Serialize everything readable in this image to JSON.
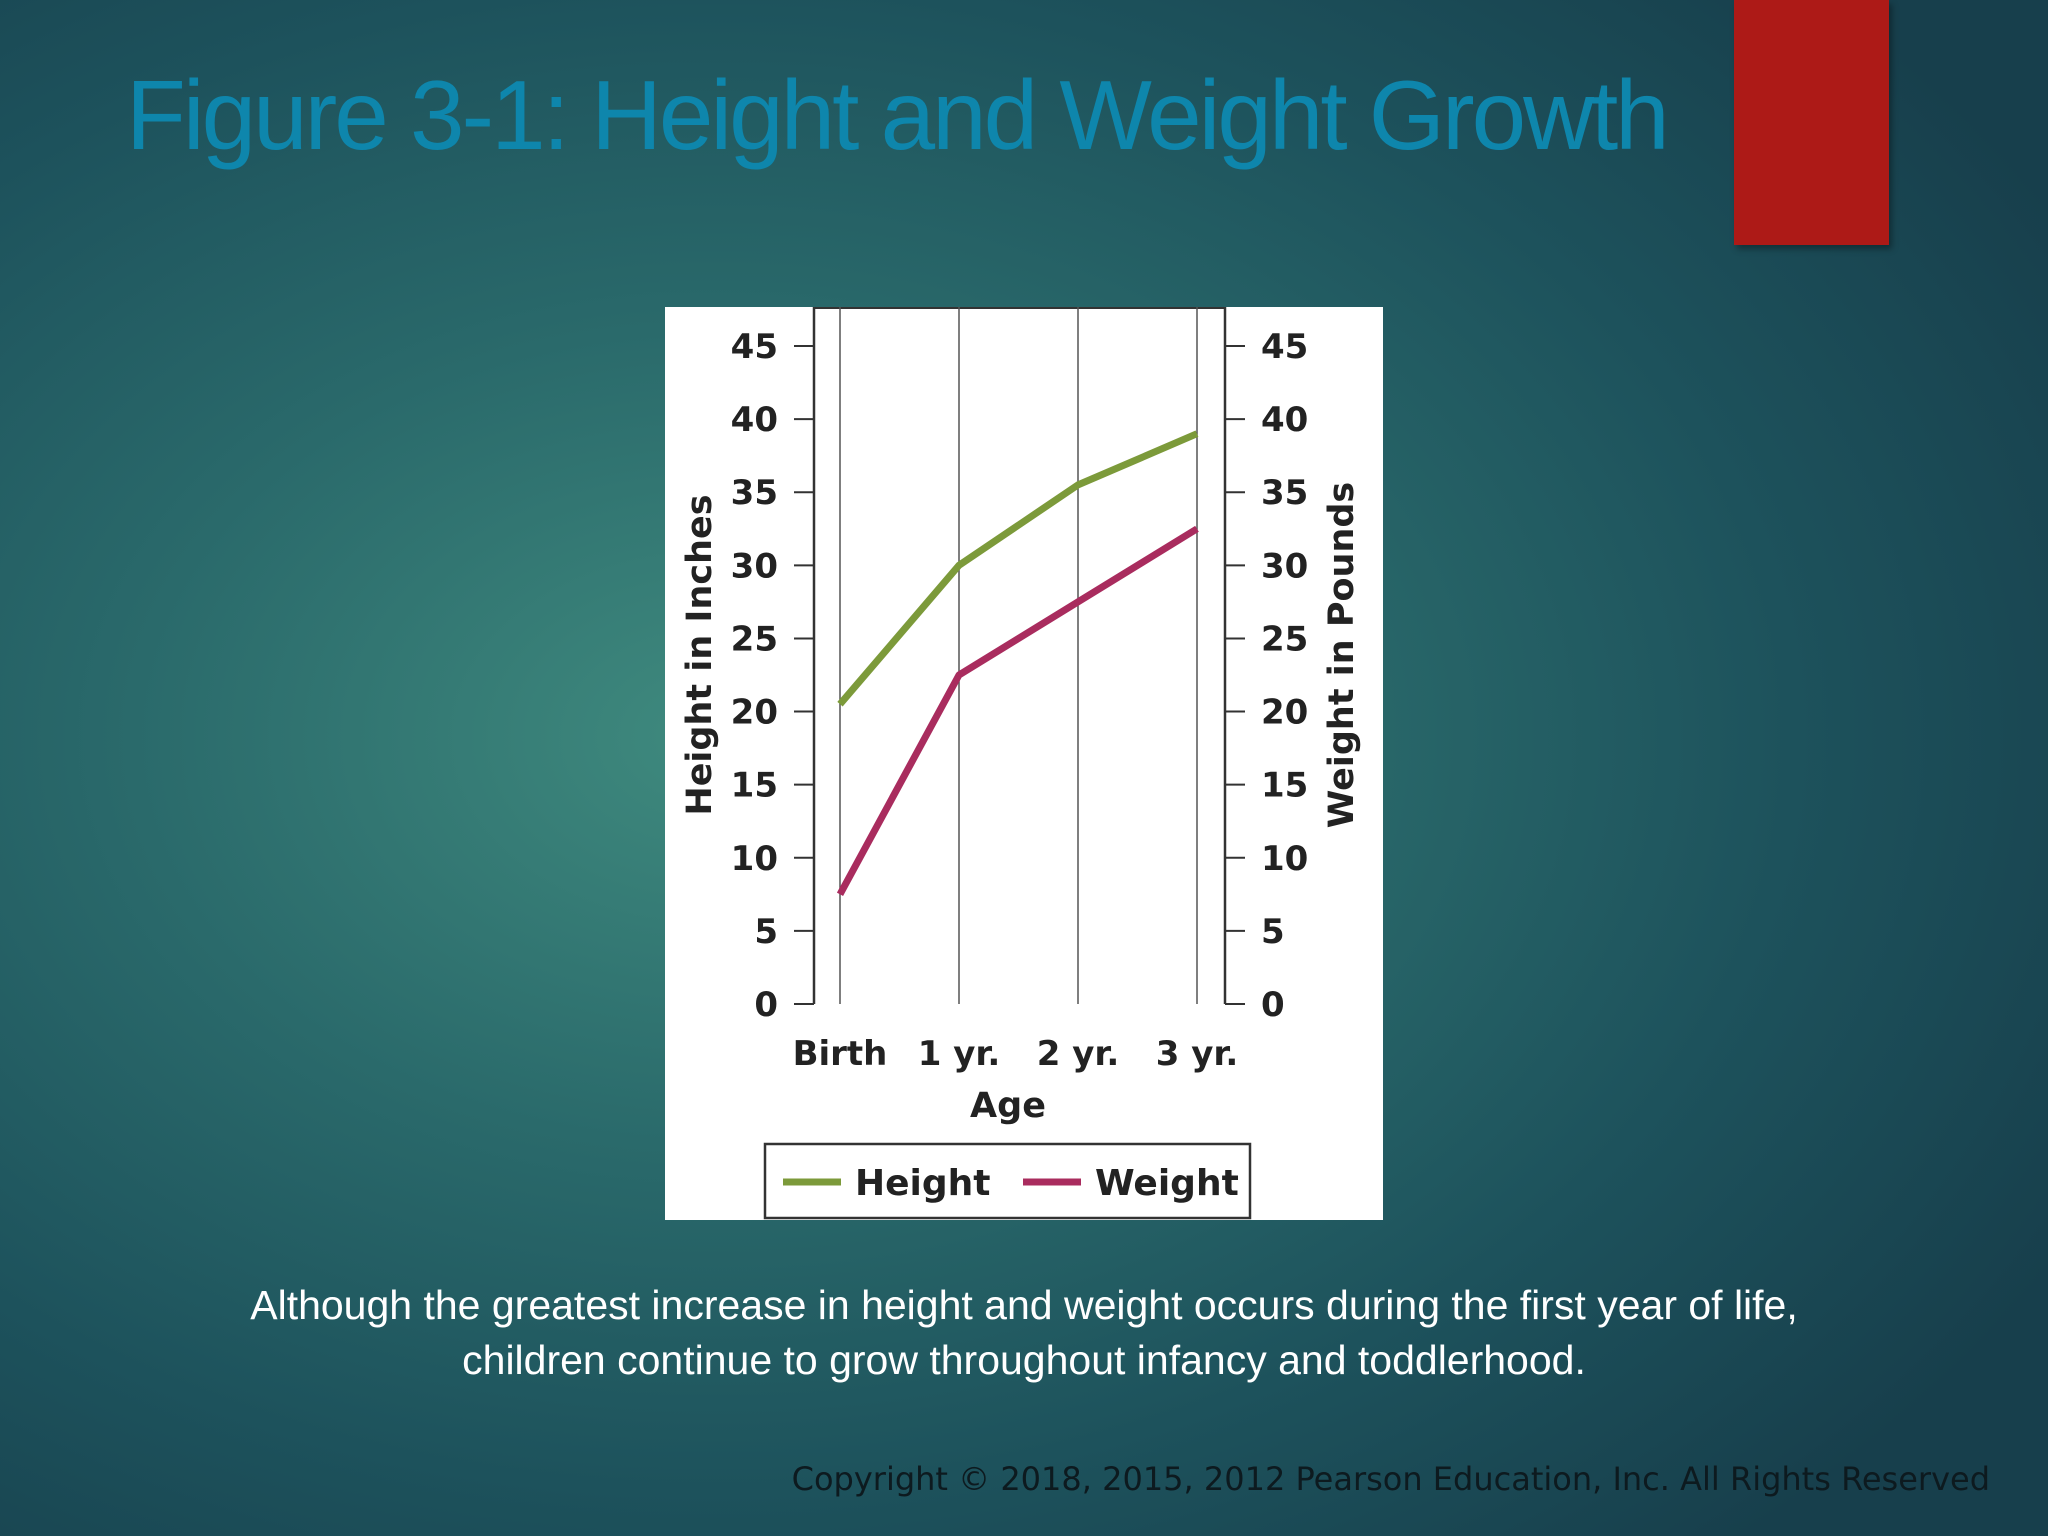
{
  "slide": {
    "title": "Figure 3-1: Height and Weight Growth",
    "caption_line1": "Although the greatest increase in height and weight occurs during the first year of life,",
    "caption_line2": "children continue to grow throughout infancy and toddlerhood.",
    "copyright": "Copyright © 2018, 2015, 2012 Pearson Education, Inc. All Rights Reserved"
  },
  "colors": {
    "title": "#0e86ac",
    "accent_red": "#ad1a17",
    "height_series": "#7c9a3a",
    "weight_series": "#a92c5e"
  },
  "chart_data": {
    "type": "line",
    "categories": [
      "Birth",
      "1 yr.",
      "2 yr.",
      "3 yr."
    ],
    "series": [
      {
        "name": "Height",
        "axis": "left",
        "values": [
          20.5,
          30,
          35.5,
          39
        ]
      },
      {
        "name": "Weight",
        "axis": "right",
        "values": [
          7.5,
          22.5,
          27.5,
          32.5
        ]
      }
    ],
    "xlabel": "Age",
    "ylabel": "Height in Inches",
    "ylabel_right": "Weight in Pounds",
    "ylim": [
      0,
      45
    ],
    "ylim_right": [
      0,
      45
    ],
    "yticks": [
      0,
      5,
      10,
      15,
      20,
      25,
      30,
      35,
      40,
      45
    ],
    "grid": "vertical lines at each age category",
    "legend": {
      "position": "bottom",
      "entries": [
        "Height",
        "Weight"
      ]
    }
  }
}
